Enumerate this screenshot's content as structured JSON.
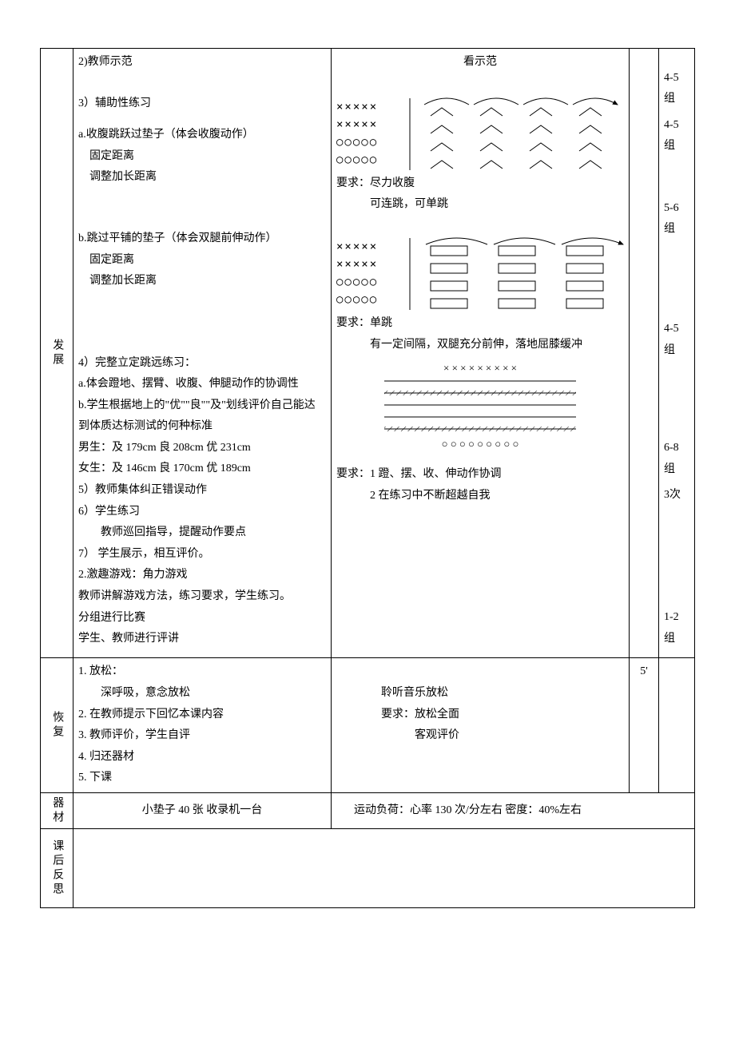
{
  "colors": {
    "border": "#000000",
    "background": "#ffffff",
    "text": "#000000",
    "hatch_fill": "#e8e8e8"
  },
  "sections": {
    "develop_label": "发展",
    "recover_label": "恢复",
    "equipment_label": "器材",
    "reflection_label": "课后反思"
  },
  "develop": {
    "left": {
      "l1": "2)教师示范",
      "l2": "3）辅助性练习",
      "l3": "a.收腹跳跃过垫子（体会收腹动作）",
      "l3a": "固定距离",
      "l3b": "调整加长距离",
      "l4": "b.跳过平铺的垫子（体会双腿前伸动作）",
      "l4a": "固定距离",
      "l4b": "调整加长距离",
      "l5": "4）完整立定跳远练习：",
      "l5a": "a.体会蹬地、摆臂、收腹、伸腿动作的协调性",
      "l5b": "b.学生根据地上的\"优\"\"良\"\"及\"划线评价自己能达到体质达标测试的何种标准",
      "l5c": "男生：及 179cm  良 208cm  优 231cm",
      "l5d": "女生：及 146cm  良 170cm  优 189cm",
      "l6": "5）教师集体纠正错误动作",
      "l7": "6）学生练习",
      "l7a": "教师巡回指导，提醒动作要点",
      "l8": "7）     学生展示，相互评价。",
      "l9": "2.激趣游戏：角力游戏",
      "l10": "教师讲解游戏方法，练习要求，学生练习。",
      "l11": "分组进行比赛",
      "l12": "学生、教师进行评讲"
    },
    "right": {
      "r1": "看示范",
      "formation_a": {
        "rows": [
          "×××××",
          "×××××",
          "○○○○○",
          "○○○○○"
        ],
        "chevron_rows": 4,
        "chevron_cols": 4,
        "arc_count": 4
      },
      "req_a1": "要求：尽力收腹",
      "req_a2": "可连跳，可单跳",
      "formation_b": {
        "rows": [
          "×××××",
          "×××××",
          "○○○○○",
          "○○○○○"
        ],
        "rect_rows": 4,
        "rect_cols": 3,
        "arc_count": 3
      },
      "req_b1": "要求：单跳",
      "req_b2": "有一定间隔，双腿充分前伸，落地屈膝缓冲",
      "formation_c": {
        "top_row": "× × × × × × × × ×",
        "bot_row": "○ ○ ○ ○ ○ ○ ○ ○ ○",
        "hlines": 5,
        "hatch_lines": [
          2,
          5
        ]
      },
      "req_c1": "要求：1 蹬、摆、收、伸动作协调",
      "req_c2": "2 在练习中不断超越自我"
    },
    "groups": [
      "4-5组",
      "4-5组",
      "5-6组",
      "4-5组",
      "6-8组",
      "3次",
      "1-2组"
    ]
  },
  "recover": {
    "left": {
      "l1": "1.  放松：",
      "l1a": "深呼吸，意念放松",
      "l2": "2.  在教师提示下回忆本课内容",
      "l3": "3.  教师评价，学生自评",
      "l4": "4.  归还器材",
      "l5": "5.  下课"
    },
    "right": {
      "r1": "聆听音乐放松",
      "r2": "要求：放松全面",
      "r3": "客观评价"
    },
    "time": "5'"
  },
  "equipment": {
    "left": "小垫子 40 张  收录机一台",
    "right": "运动负荷：心率 130 次/分左右     密度：40%左右"
  }
}
